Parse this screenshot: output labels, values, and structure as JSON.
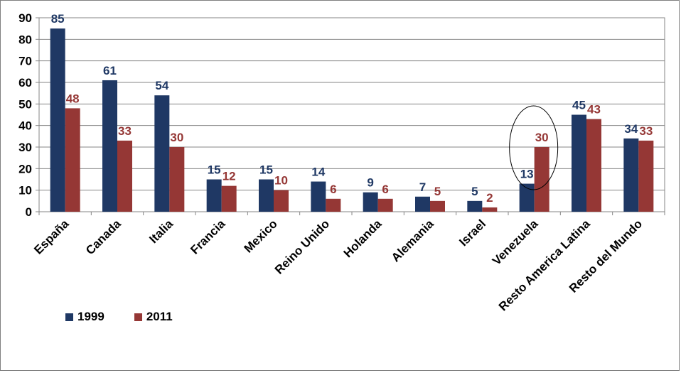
{
  "chart_data": {
    "type": "bar",
    "categories": [
      "España",
      "Canada",
      "Italia",
      "Francia",
      "Mexico",
      "Reino Unido",
      "Holanda",
      "Alemania",
      "Israel",
      "Venezuela",
      "Resto America Latina",
      "Resto del Mundo"
    ],
    "series": [
      {
        "name": "1999",
        "color": "#1f3864",
        "label_color": "#1f3864",
        "values": [
          85,
          61,
          54,
          15,
          15,
          14,
          9,
          7,
          5,
          13,
          45,
          34
        ]
      },
      {
        "name": "2011",
        "color": "#953735",
        "label_color": "#953735",
        "values": [
          48,
          33,
          30,
          12,
          10,
          6,
          6,
          5,
          2,
          30,
          43,
          33
        ]
      }
    ],
    "ylim": [
      0,
      90
    ],
    "yticks": [
      0,
      10,
      20,
      30,
      40,
      50,
      60,
      70,
      80,
      90
    ],
    "grid": true,
    "legend_position": "bottom-left",
    "highlight_category": "Venezuela",
    "highlight_shape": "ellipse"
  }
}
